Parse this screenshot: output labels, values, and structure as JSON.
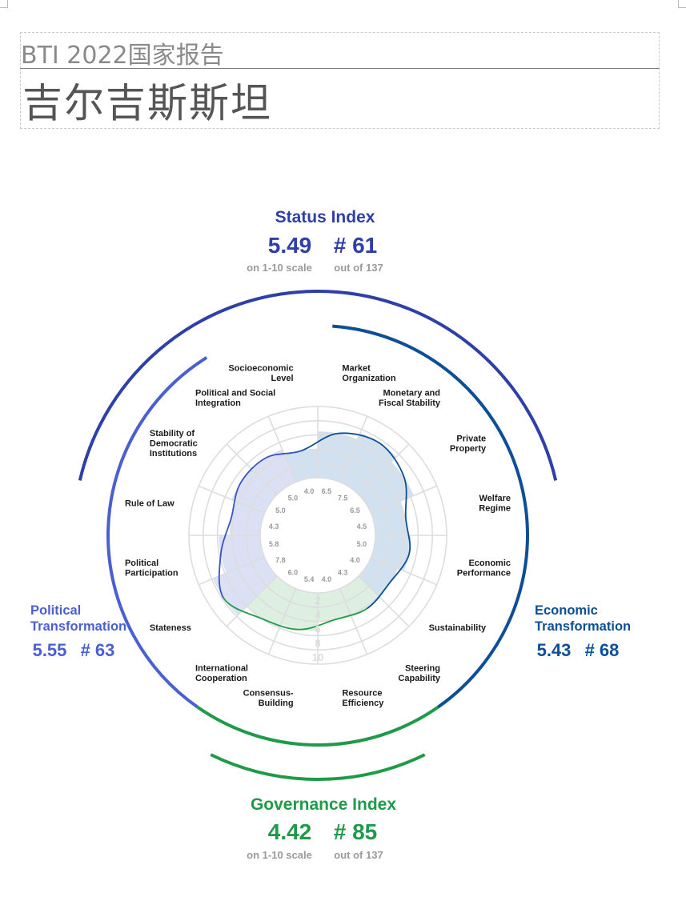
{
  "header": {
    "report_title": "BTI 2022国家报告",
    "country": "吉尔吉斯斯坦"
  },
  "status_index": {
    "title": "Status Index",
    "score": "5.49",
    "rank": "# 61",
    "score_note": "on 1-10 scale",
    "rank_note": "out of 137",
    "color": "#2e3fa8"
  },
  "governance_index": {
    "title": "Governance Index",
    "score": "4.42",
    "rank": "# 85",
    "score_note": "on 1-10 scale",
    "rank_note": "out of 137",
    "color": "#1f9a48"
  },
  "political_transformation": {
    "title_line1": "Political",
    "title_line2": "Transformation",
    "score": "5.55",
    "rank": "# 63",
    "color": "#4a5fd0"
  },
  "economic_transformation": {
    "title_line1": "Economic",
    "title_line2": "Transformation",
    "score": "5.43",
    "rank": "# 68",
    "color": "#0d4f96"
  },
  "chart_data": {
    "type": "radar",
    "scale": [
      0,
      10
    ],
    "ring_labels": [
      "2",
      "4",
      "6",
      "8",
      "10"
    ],
    "axes": [
      {
        "label": "Market Organization",
        "value": 6.5,
        "group": "economic"
      },
      {
        "label": "Monetary and Fiscal Stability",
        "value": 7.5,
        "group": "economic"
      },
      {
        "label": "Private Property",
        "value": 6.5,
        "group": "economic"
      },
      {
        "label": "Welfare Regime",
        "value": 4.5,
        "group": "economic"
      },
      {
        "label": "Economic Performance",
        "value": 5.0,
        "group": "economic"
      },
      {
        "label": "Sustainability",
        "value": 4.0,
        "group": "economic"
      },
      {
        "label": "Steering Capability",
        "value": 4.3,
        "group": "governance"
      },
      {
        "label": "Resource Efficiency",
        "value": 4.0,
        "group": "governance"
      },
      {
        "label": "Consensus-Building",
        "value": 5.4,
        "group": "governance"
      },
      {
        "label": "International Cooperation",
        "value": 6.0,
        "group": "governance"
      },
      {
        "label": "Stateness",
        "value": 7.8,
        "group": "political"
      },
      {
        "label": "Political Participation",
        "value": 5.8,
        "group": "political"
      },
      {
        "label": "Rule of Law",
        "value": 4.3,
        "group": "political"
      },
      {
        "label": "Stability of Democratic Institutions",
        "value": 5.0,
        "group": "political"
      },
      {
        "label": "Political and Social Integration",
        "value": 5.0,
        "group": "political"
      },
      {
        "label": "Socioeconomic Level",
        "value": 4.0,
        "group": "economic"
      }
    ],
    "colors": {
      "political": "#3555c0",
      "economic": "#0d4f96",
      "governance": "#1f9a48",
      "political_fill": "#dce0f4",
      "economic_fill": "#d2e1ef",
      "governance_fill": "#dcefe0",
      "grid": "#dddddd"
    }
  }
}
